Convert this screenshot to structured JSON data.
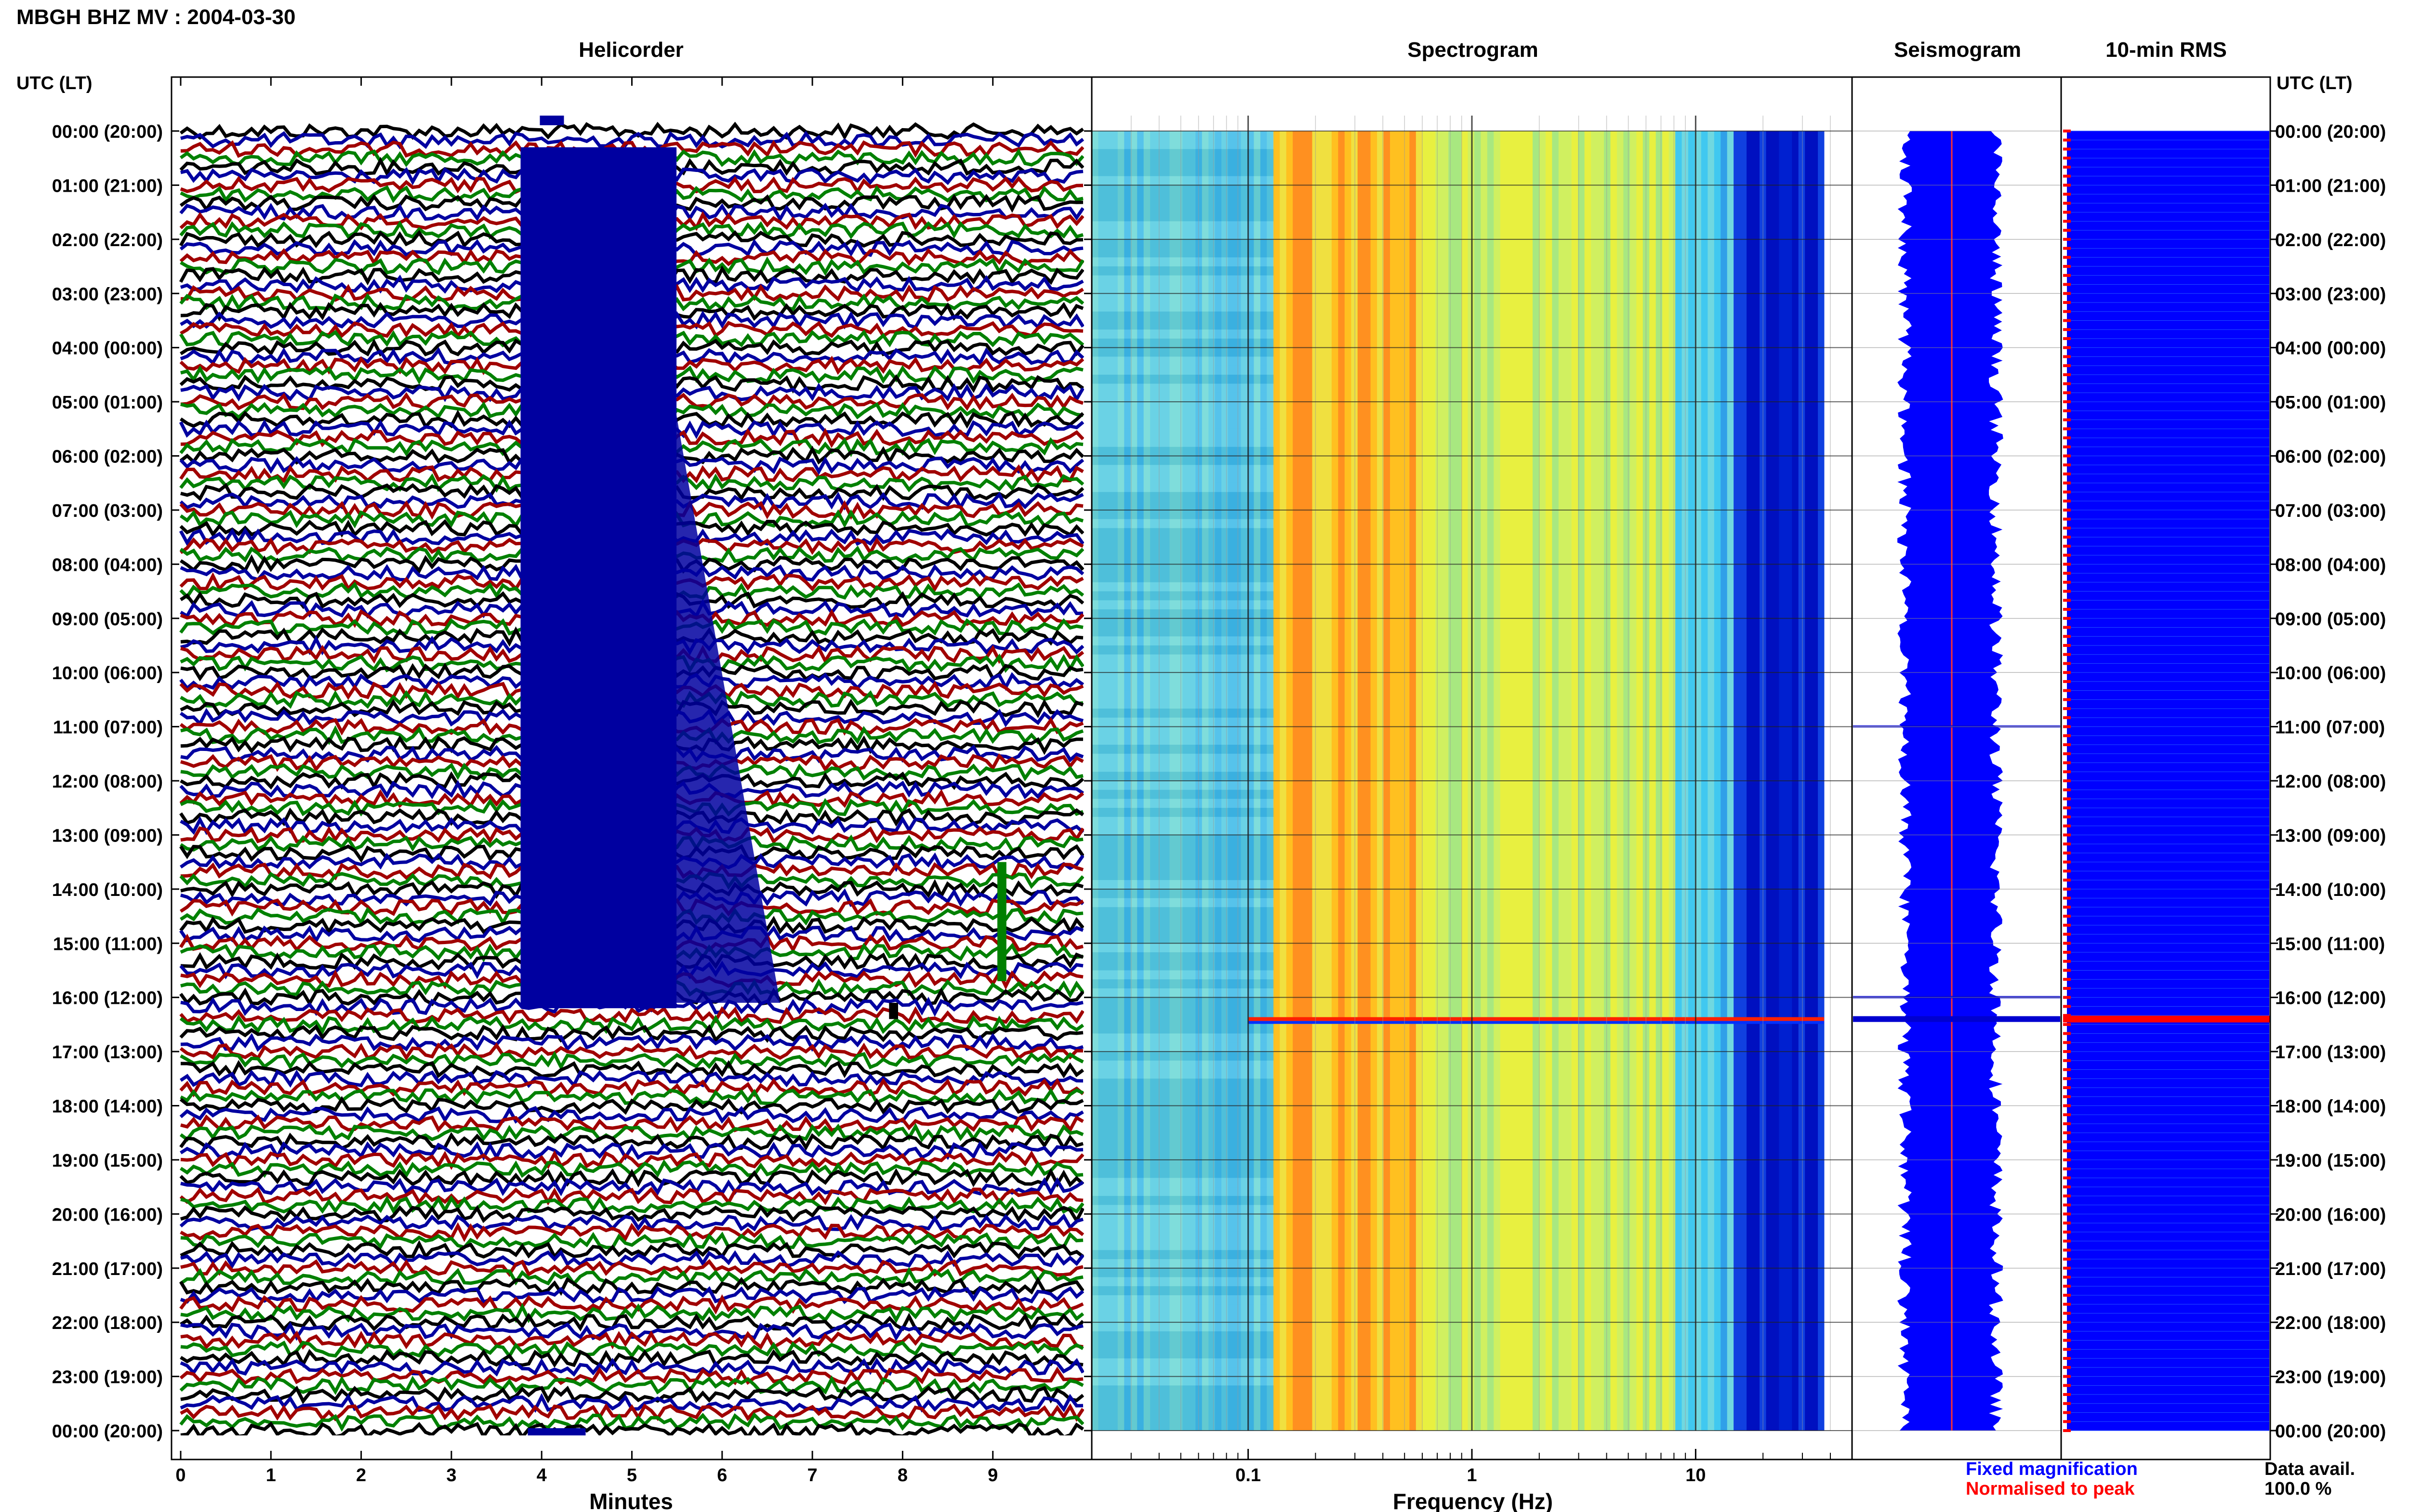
{
  "title": "MBGH BHZ MV : 2004-03-30",
  "panels": {
    "helicorder": "Helicorder",
    "spectrogram": "Spectrogram",
    "seismogram": "Seismogram",
    "rms": "10-min RMS"
  },
  "left_axis_header": "UTC (LT)",
  "right_axis_header": "UTC (LT)",
  "time_labels": [
    "00:00 (20:00)",
    "01:00 (21:00)",
    "02:00 (22:00)",
    "03:00 (23:00)",
    "04:00 (00:00)",
    "05:00 (01:00)",
    "06:00 (02:00)",
    "07:00 (03:00)",
    "08:00 (04:00)",
    "09:00 (05:00)",
    "10:00 (06:00)",
    "11:00 (07:00)",
    "12:00 (08:00)",
    "13:00 (09:00)",
    "14:00 (10:00)",
    "15:00 (11:00)",
    "16:00 (12:00)",
    "17:00 (13:00)",
    "18:00 (14:00)",
    "19:00 (15:00)",
    "20:00 (16:00)",
    "21:00 (17:00)",
    "22:00 (18:00)",
    "23:00 (19:00)",
    "00:00 (20:00)"
  ],
  "legend": {
    "fixed": "Fixed magnification",
    "normalised": "Normalised to peak",
    "fixed_color": "#0000ff",
    "normalised_color": "#ff0000"
  },
  "availability": {
    "label": "Data avail.",
    "value": "100.0 %"
  },
  "colors": {
    "trace_cycle": [
      "#000000",
      "#0000a0",
      "#a00000",
      "#008000"
    ],
    "spectrogram_low": "#00008b",
    "spectrogram_mid": "#ffff00",
    "spectrogram_high": "#ff0000",
    "seismogram": "#0000ff",
    "rms": "#0000ff"
  },
  "chart_data": [
    {
      "type": "line",
      "name": "helicorder",
      "title": "Helicorder",
      "xlabel": "Minutes",
      "x_ticks": [
        "0",
        "1",
        "2",
        "3",
        "4",
        "5",
        "6",
        "7",
        "8",
        "9"
      ],
      "xlim": [
        0,
        10
      ],
      "rows_per_hour": 6,
      "hours": 24,
      "events": [
        {
          "start_minute": 3.9,
          "end_minute": 4.4,
          "start_hour": 0,
          "end_hour": 16.2,
          "description_visible": false
        },
        {
          "start_minute": 7.85,
          "end_minute": 7.95,
          "start_hour": 16.1,
          "end_hour": 16.4,
          "description_visible": false
        },
        {
          "start_minute": 9.05,
          "end_minute": 9.15,
          "start_hour": 13.5,
          "end_hour": 15.7,
          "description_visible": false
        }
      ]
    },
    {
      "type": "heatmap",
      "name": "spectrogram",
      "title": "Spectrogram",
      "xlabel": "Frequency (Hz)",
      "x_scale": "log",
      "x_ticks": [
        "0.1",
        "1",
        "10"
      ],
      "xlim": [
        0.02,
        50
      ],
      "ylim_hours": [
        0,
        24
      ],
      "hot_band_hz": [
        0.13,
        0.6
      ],
      "warm_band_hz": [
        0.6,
        8
      ],
      "cold_above_hz": 15,
      "event_hour": 16.4
    },
    {
      "type": "line",
      "name": "seismogram",
      "title": "Seismogram",
      "ylim_hours": [
        0,
        24
      ],
      "event_hour": 16.4
    },
    {
      "type": "bar",
      "name": "rms",
      "title": "10-min RMS",
      "bins_per_hour": 6,
      "ylim_hours": [
        0,
        24
      ],
      "peak_hour": 16.4
    }
  ]
}
